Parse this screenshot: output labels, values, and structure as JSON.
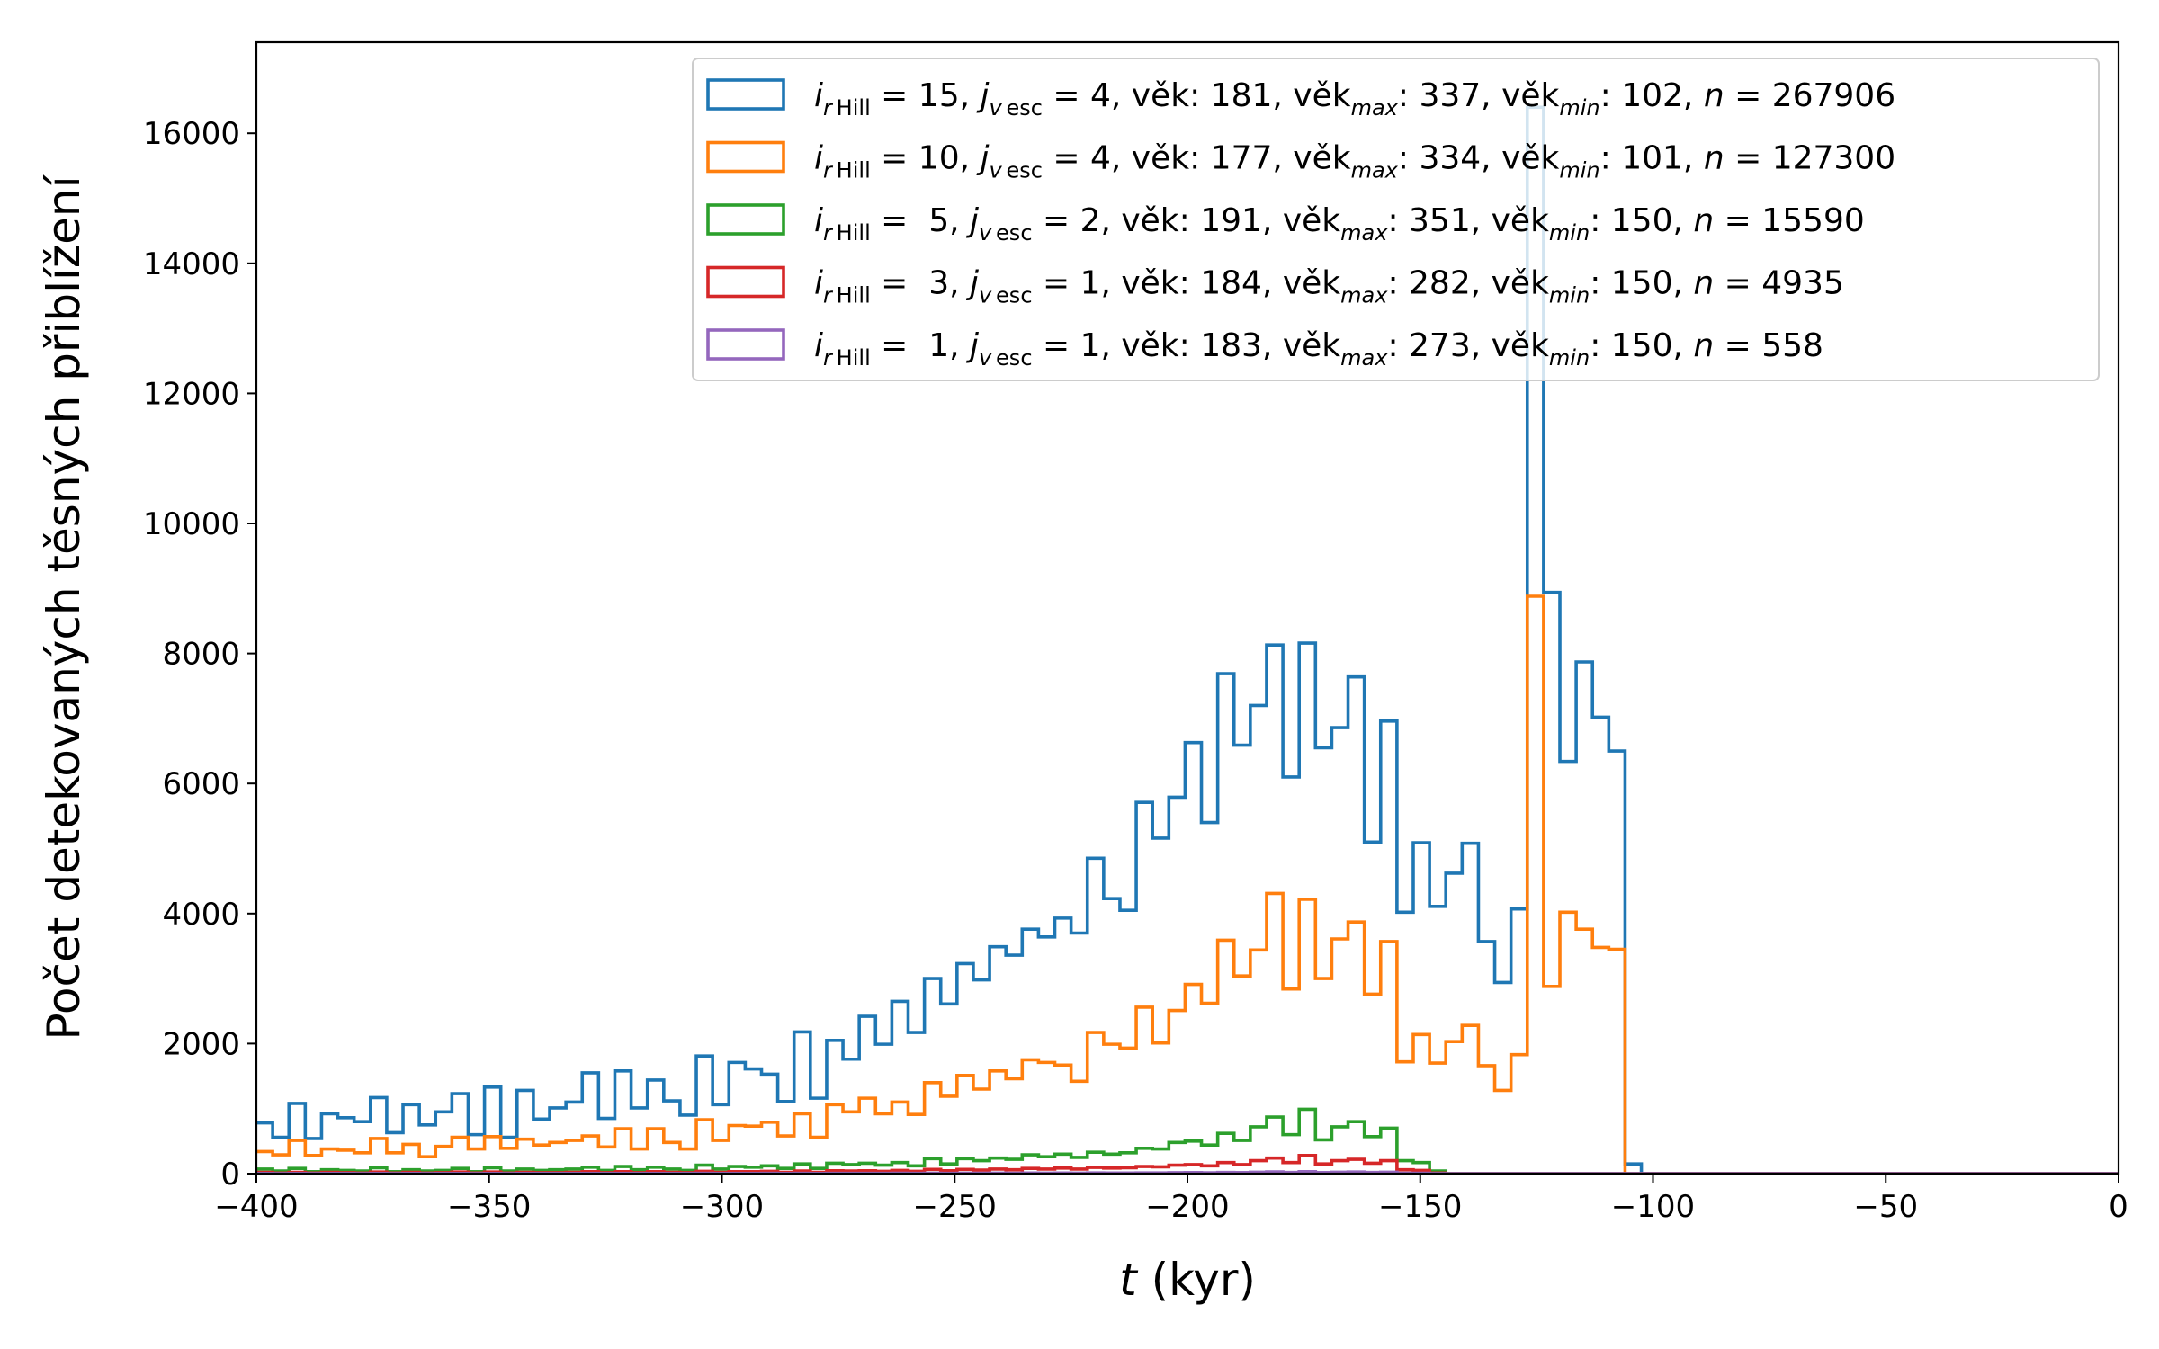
{
  "chart_data": {
    "type": "histogram-step",
    "xlabel_var": "t",
    "xlabel_unit": " (kyr)",
    "ylabel": "Počet detekovaných těsných přiblížení",
    "xlim": [
      -400,
      0
    ],
    "ylim": [
      0,
      17400
    ],
    "xticks": [
      -400,
      -350,
      -300,
      -250,
      -200,
      -150,
      -100,
      -50,
      0
    ],
    "xtick_labels": [
      "−400",
      "−350",
      "−300",
      "−250",
      "−200",
      "−150",
      "−100",
      "−50",
      "0"
    ],
    "yticks": [
      0,
      2000,
      4000,
      6000,
      8000,
      10000,
      12000,
      14000,
      16000
    ],
    "ytick_labels": [
      "0",
      "2000",
      "4000",
      "6000",
      "8000",
      "10000",
      "12000",
      "14000",
      "16000"
    ],
    "legend_location": "upper right",
    "bin_start": -400,
    "bin_width": 3.5,
    "series": [
      {
        "color": "#1f77b4",
        "legend": {
          "i": "15",
          "j": "4",
          "vek": "181",
          "vekmax": "337",
          "vekmin": "102",
          "n": "267906"
        },
        "values": [
          780,
          560,
          1080,
          540,
          920,
          860,
          800,
          1170,
          630,
          1060,
          750,
          950,
          1230,
          600,
          1330,
          560,
          1280,
          840,
          1010,
          1100,
          1550,
          850,
          1580,
          1010,
          1440,
          1120,
          900,
          1810,
          1060,
          1710,
          1610,
          1530,
          1110,
          2180,
          1160,
          2050,
          1760,
          2420,
          1990,
          2650,
          2170,
          3000,
          2610,
          3230,
          2980,
          3490,
          3360,
          3760,
          3640,
          3930,
          3700,
          4850,
          4230,
          4050,
          5710,
          5160,
          5790,
          6630,
          5400,
          7690,
          6590,
          7200,
          8130,
          6100,
          8160,
          6550,
          6860,
          7640,
          5100,
          6960,
          4020,
          5090,
          4110,
          4620,
          5080,
          3570,
          2940,
          4070,
          16400,
          8940,
          6340,
          7870,
          7020,
          6500,
          150,
          0,
          0,
          0,
          0,
          0,
          0,
          0,
          0,
          0,
          0,
          0,
          0,
          0,
          0,
          0,
          0,
          0,
          0,
          0,
          0,
          0,
          0,
          0,
          0,
          0,
          0,
          0,
          0,
          0,
          0
        ]
      },
      {
        "color": "#ff7f0e",
        "legend": {
          "i": "10",
          "j": "4",
          "vek": "177",
          "vekmax": "334",
          "vekmin": "101",
          "n": "127300"
        },
        "values": [
          340,
          290,
          510,
          280,
          380,
          360,
          320,
          540,
          320,
          450,
          260,
          420,
          560,
          380,
          570,
          390,
          530,
          440,
          480,
          510,
          580,
          410,
          690,
          380,
          690,
          480,
          380,
          830,
          510,
          740,
          730,
          790,
          580,
          920,
          560,
          1060,
          950,
          1160,
          920,
          1100,
          910,
          1400,
          1190,
          1510,
          1300,
          1580,
          1460,
          1750,
          1710,
          1670,
          1420,
          2170,
          1990,
          1930,
          2560,
          2010,
          2510,
          2910,
          2620,
          3590,
          3040,
          3440,
          4310,
          2840,
          4220,
          3000,
          3610,
          3870,
          2760,
          3570,
          1720,
          2140,
          1700,
          2030,
          2280,
          1660,
          1280,
          1830,
          8880,
          2880,
          4020,
          3760,
          3480,
          3450,
          0,
          0,
          0,
          0,
          0,
          0,
          0,
          0,
          0,
          0,
          0,
          0,
          0,
          0,
          0,
          0,
          0,
          0,
          0,
          0,
          0,
          0,
          0,
          0,
          0,
          0,
          0,
          0,
          0,
          0,
          0
        ]
      },
      {
        "color": "#2ca02c",
        "legend": {
          "i": " 5",
          "j": "2",
          "vek": "191",
          "vekmax": "351",
          "vekmin": "150",
          "n": "15590"
        },
        "values": [
          70,
          40,
          80,
          30,
          60,
          50,
          40,
          90,
          30,
          60,
          40,
          50,
          80,
          30,
          90,
          40,
          70,
          50,
          60,
          70,
          100,
          50,
          110,
          60,
          100,
          70,
          50,
          130,
          70,
          110,
          100,
          120,
          80,
          150,
          80,
          160,
          140,
          160,
          130,
          170,
          120,
          230,
          150,
          230,
          200,
          240,
          220,
          290,
          260,
          300,
          250,
          330,
          300,
          320,
          390,
          380,
          480,
          500,
          440,
          620,
          510,
          720,
          870,
          600,
          990,
          520,
          720,
          800,
          570,
          700,
          200,
          170,
          40,
          0,
          0,
          0,
          0,
          0,
          0,
          0,
          0,
          0,
          0,
          0,
          0,
          0,
          0,
          0,
          0,
          0,
          0,
          0,
          0,
          0,
          0,
          0,
          0,
          0,
          0,
          0,
          0,
          0,
          0,
          0,
          0,
          0,
          0,
          0,
          0,
          0,
          0,
          0,
          0,
          0,
          0
        ]
      },
      {
        "color": "#d62728",
        "legend": {
          "i": " 3",
          "j": "1",
          "vek": "184",
          "vekmax": "282",
          "vekmin": "150",
          "n": "4935"
        },
        "values": [
          20,
          10,
          20,
          10,
          20,
          15,
          10,
          25,
          10,
          20,
          10,
          15,
          25,
          10,
          25,
          10,
          20,
          15,
          15,
          20,
          30,
          15,
          30,
          15,
          30,
          20,
          15,
          35,
          20,
          30,
          30,
          35,
          20,
          40,
          20,
          45,
          40,
          45,
          35,
          50,
          35,
          65,
          45,
          65,
          55,
          70,
          60,
          80,
          70,
          85,
          70,
          95,
          85,
          90,
          110,
          105,
          130,
          140,
          120,
          170,
          140,
          200,
          240,
          170,
          280,
          150,
          200,
          220,
          160,
          200,
          60,
          50,
          10,
          0,
          0,
          0,
          0,
          0,
          0,
          0,
          0,
          0,
          0,
          0,
          0,
          0,
          0,
          0,
          0,
          0,
          0,
          0,
          0,
          0,
          0,
          0,
          0,
          0,
          0,
          0,
          0,
          0,
          0,
          0,
          0,
          0,
          0,
          0,
          0,
          0,
          0,
          0,
          0,
          0,
          0
        ]
      },
      {
        "color": "#9467bd",
        "legend": {
          "i": " 1",
          "j": "1",
          "vek": "183",
          "vekmax": "273",
          "vekmin": "150",
          "n": "558"
        },
        "values": [
          2,
          1,
          2,
          1,
          2,
          2,
          1,
          3,
          1,
          2,
          1,
          2,
          3,
          1,
          3,
          1,
          2,
          2,
          2,
          2,
          3,
          2,
          3,
          2,
          3,
          2,
          2,
          4,
          2,
          3,
          3,
          4,
          2,
          4,
          2,
          5,
          4,
          5,
          4,
          6,
          4,
          7,
          5,
          7,
          6,
          8,
          7,
          9,
          8,
          10,
          8,
          11,
          10,
          10,
          12,
          12,
          15,
          16,
          14,
          19,
          16,
          22,
          27,
          19,
          31,
          17,
          22,
          25,
          18,
          22,
          7,
          6,
          1,
          0,
          0,
          0,
          0,
          0,
          0,
          0,
          0,
          0,
          0,
          0,
          0,
          0,
          0,
          0,
          0,
          0,
          0,
          0,
          0,
          0,
          0,
          0,
          0,
          0,
          0,
          0,
          0,
          0,
          0,
          0,
          0,
          0,
          0,
          0,
          0,
          0,
          0,
          0,
          0,
          0,
          0
        ]
      }
    ]
  }
}
